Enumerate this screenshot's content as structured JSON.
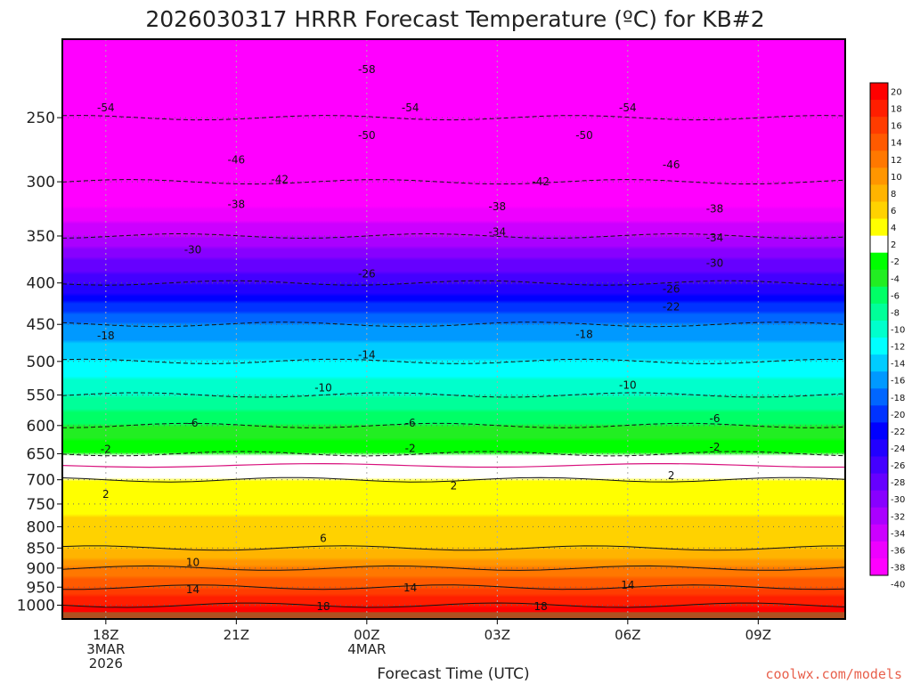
{
  "chart_data": {
    "type": "heatmap",
    "title": "2026030317 HRRR Forecast Temperature (ºC) for KB#2",
    "xlabel": "Forecast Time (UTC)",
    "ylabel": "",
    "credit": "coolwx.com/models",
    "x_range_hours": [
      -1.0,
      17.0
    ],
    "x_ticks": [
      {
        "hour": 0,
        "lines": [
          "18Z",
          "3MAR",
          "2026"
        ]
      },
      {
        "hour": 3,
        "lines": [
          "21Z"
        ]
      },
      {
        "hour": 6,
        "lines": [
          "00Z",
          "4MAR"
        ]
      },
      {
        "hour": 9,
        "lines": [
          "03Z"
        ]
      },
      {
        "hour": 12,
        "lines": [
          "06Z"
        ]
      },
      {
        "hour": 15,
        "lines": [
          "09Z"
        ]
      }
    ],
    "y_scale": "log",
    "y_range_hPa": [
      1040,
      200
    ],
    "y_ticks": [
      1000,
      950,
      900,
      850,
      800,
      750,
      700,
      650,
      600,
      550,
      500,
      450,
      400,
      350,
      300,
      250
    ],
    "colorbar": {
      "levels": [
        20,
        18,
        16,
        14,
        12,
        10,
        8,
        6,
        4,
        2,
        -2,
        -4,
        -6,
        -8,
        -10,
        -12,
        -14,
        -16,
        -18,
        -20,
        -22,
        -24,
        -26,
        -28,
        -30,
        -32,
        -34,
        -36,
        -38,
        -40
      ],
      "colors": [
        "#ff0000",
        "#ff1e00",
        "#ff3c00",
        "#ff5a00",
        "#ff7800",
        "#ff9600",
        "#ffb400",
        "#ffd200",
        "#ffff00",
        "#ffffff",
        "#00ff00",
        "#22ee22",
        "#00ff66",
        "#00ff99",
        "#00ffcc",
        "#00ffff",
        "#00ccff",
        "#0099ff",
        "#0066ff",
        "#0033ff",
        "#0000ff",
        "#2200ff",
        "#4400ff",
        "#6600ff",
        "#8800ff",
        "#aa00ff",
        "#cc00ff",
        "#ee00ff",
        "#ff00ff"
      ]
    },
    "temperature_levels": [
      {
        "p": 1000,
        "t": 18
      },
      {
        "p": 950,
        "t": 14
      },
      {
        "p": 900,
        "t": 10
      },
      {
        "p": 850,
        "t": 6
      },
      {
        "p": 700,
        "t": 2
      },
      {
        "p": 650,
        "t": -2
      },
      {
        "p": 600,
        "t": -6
      },
      {
        "p": 550,
        "t": -10
      },
      {
        "p": 500,
        "t": -14
      },
      {
        "p": 450,
        "t": -18
      },
      {
        "p": 400,
        "t": -26
      },
      {
        "p": 350,
        "t": -34
      },
      {
        "p": 300,
        "t": -42
      },
      {
        "p": 250,
        "t": -54
      }
    ],
    "contour_labels": [
      {
        "hour": 0.0,
        "p": 243,
        "text": "-54"
      },
      {
        "hour": 6.0,
        "p": 218,
        "text": "-58"
      },
      {
        "hour": 7.0,
        "p": 243,
        "text": "-54"
      },
      {
        "hour": 12.0,
        "p": 243,
        "text": "-54"
      },
      {
        "hour": 6.0,
        "p": 263,
        "text": "-50"
      },
      {
        "hour": 11.0,
        "p": 263,
        "text": "-50"
      },
      {
        "hour": 3.0,
        "p": 282,
        "text": "-46"
      },
      {
        "hour": 13.0,
        "p": 286,
        "text": "-46"
      },
      {
        "hour": 4.0,
        "p": 298,
        "text": "-42"
      },
      {
        "hour": 10.0,
        "p": 300,
        "text": "-42"
      },
      {
        "hour": 3.0,
        "p": 320,
        "text": "-38"
      },
      {
        "hour": 9.0,
        "p": 322,
        "text": "-38"
      },
      {
        "hour": 14.0,
        "p": 324,
        "text": "-38"
      },
      {
        "hour": 9.0,
        "p": 346,
        "text": "-34"
      },
      {
        "hour": 14.0,
        "p": 352,
        "text": "-34"
      },
      {
        "hour": 2.0,
        "p": 364,
        "text": "-30"
      },
      {
        "hour": 14.0,
        "p": 378,
        "text": "-30"
      },
      {
        "hour": 6.0,
        "p": 390,
        "text": "-26"
      },
      {
        "hour": 13.0,
        "p": 407,
        "text": "-26"
      },
      {
        "hour": 13.0,
        "p": 428,
        "text": "-22"
      },
      {
        "hour": 0.0,
        "p": 465,
        "text": "-18"
      },
      {
        "hour": 11.0,
        "p": 463,
        "text": "-18"
      },
      {
        "hour": 6.0,
        "p": 491,
        "text": "-14"
      },
      {
        "hour": 5.0,
        "p": 539,
        "text": "-10"
      },
      {
        "hour": 12.0,
        "p": 535,
        "text": "-10"
      },
      {
        "hour": 2.0,
        "p": 596,
        "text": "-6"
      },
      {
        "hour": 7.0,
        "p": 596,
        "text": "-6"
      },
      {
        "hour": 14.0,
        "p": 588,
        "text": "-6"
      },
      {
        "hour": 0.0,
        "p": 642,
        "text": "-2"
      },
      {
        "hour": 7.0,
        "p": 640,
        "text": "-2"
      },
      {
        "hour": 14.0,
        "p": 638,
        "text": "-2"
      },
      {
        "hour": 0.0,
        "p": 730,
        "text": "2"
      },
      {
        "hour": 8.0,
        "p": 712,
        "text": "2"
      },
      {
        "hour": 13.0,
        "p": 692,
        "text": "2"
      },
      {
        "hour": 5.0,
        "p": 827,
        "text": "6"
      },
      {
        "hour": 2.0,
        "p": 885,
        "text": "10"
      },
      {
        "hour": 2.0,
        "p": 957,
        "text": "14"
      },
      {
        "hour": 7.0,
        "p": 952,
        "text": "14"
      },
      {
        "hour": 12.0,
        "p": 945,
        "text": "14"
      },
      {
        "hour": 5.0,
        "p": 1004,
        "text": "18"
      },
      {
        "hour": 10.0,
        "p": 1004,
        "text": "18"
      }
    ],
    "grid": true
  }
}
